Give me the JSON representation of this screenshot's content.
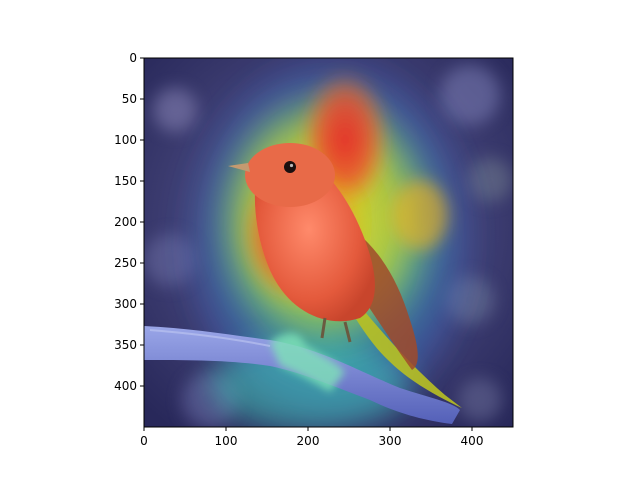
{
  "figure": {
    "xaxis": {
      "range": [
        0,
        450
      ],
      "ticks": [
        {
          "value": 0,
          "label": "0"
        },
        {
          "value": 100,
          "label": "100"
        },
        {
          "value": 200,
          "label": "200"
        },
        {
          "value": 300,
          "label": "300"
        },
        {
          "value": 400,
          "label": "400"
        }
      ]
    },
    "yaxis": {
      "range": [
        0,
        450
      ],
      "inverted": true,
      "ticks": [
        {
          "value": 0,
          "label": "0"
        },
        {
          "value": 50,
          "label": "50"
        },
        {
          "value": 100,
          "label": "100"
        },
        {
          "value": 150,
          "label": "150"
        },
        {
          "value": 200,
          "label": "200"
        },
        {
          "value": 250,
          "label": "250"
        },
        {
          "value": 300,
          "label": "300"
        },
        {
          "value": 350,
          "label": "350"
        },
        {
          "value": 400,
          "label": "400"
        }
      ]
    },
    "image": {
      "subject": "bird on branch",
      "overlay": "heatmap",
      "colormap": "jet"
    }
  }
}
